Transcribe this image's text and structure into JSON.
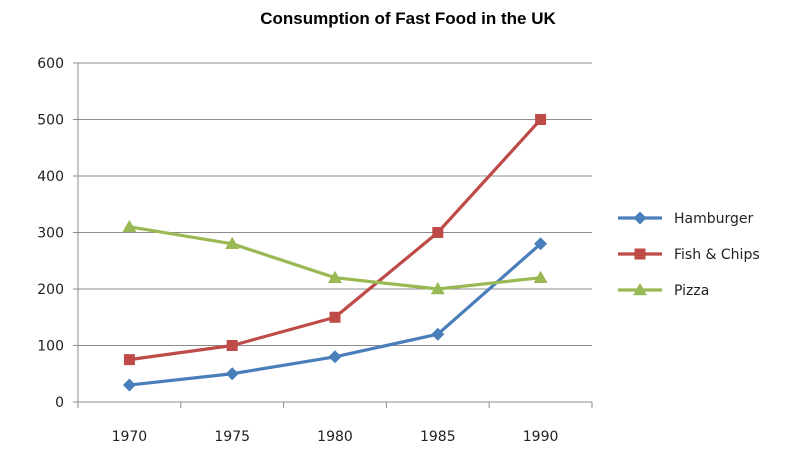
{
  "chart_data": {
    "type": "line",
    "title": "Consumption of Fast Food in the UK",
    "xlabel": "",
    "ylabel": "",
    "categories": [
      "1970",
      "1975",
      "1980",
      "1985",
      "1990"
    ],
    "ylim": [
      0,
      600
    ],
    "yticks": [
      "0",
      "100",
      "200",
      "300",
      "400",
      "500",
      "600"
    ],
    "grid": true,
    "legend_position": "right",
    "series": [
      {
        "name": "Hamburger",
        "color": "#4a7ebb",
        "marker": "diamond",
        "values": [
          30,
          50,
          80,
          120,
          280
        ]
      },
      {
        "name": "Fish & Chips",
        "color": "#be4b48",
        "marker": "square",
        "values": [
          75,
          100,
          150,
          300,
          500
        ]
      },
      {
        "name": "Pizza",
        "color": "#98b954",
        "marker": "triangle",
        "values": [
          310,
          280,
          220,
          200,
          220
        ]
      }
    ]
  }
}
